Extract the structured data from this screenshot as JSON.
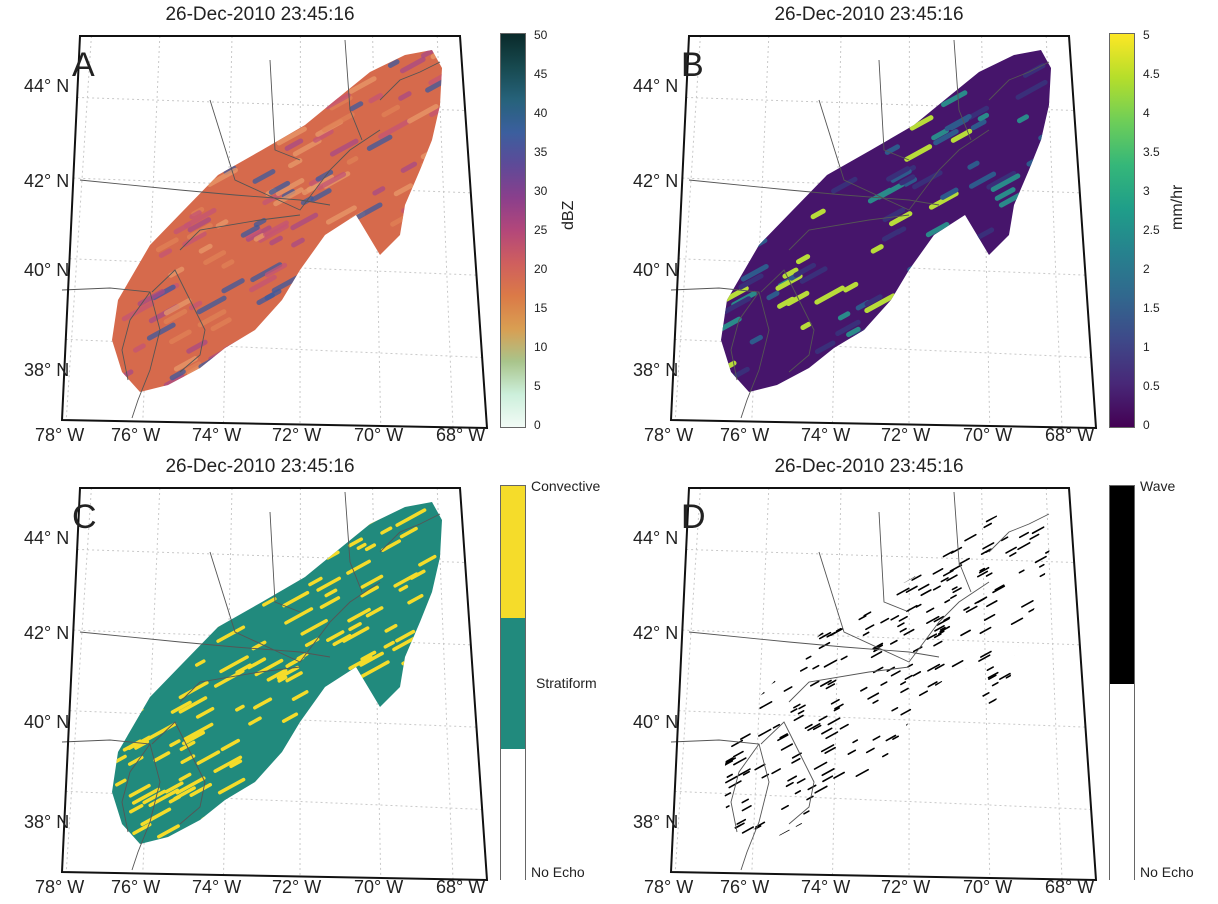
{
  "panels": [
    {
      "id": "A",
      "title": "26-Dec-2010 23:45:16",
      "label": "A",
      "colorbar": {
        "type": "continuous",
        "label": "dBZ",
        "ticks": [
          "50",
          "45",
          "40",
          "35",
          "30",
          "25",
          "20",
          "15",
          "10",
          "5",
          "0"
        ],
        "gradient": [
          "#0a2a2a",
          "#17494f",
          "#26627a",
          "#3b5f9e",
          "#5e4a98",
          "#8a3f8c",
          "#b3477a",
          "#cf5f5e",
          "#db7a47",
          "#d99e52",
          "#a9c48b",
          "#ccefdb",
          "#f2fbf6"
        ]
      },
      "field_colors": [
        "#d66a4c",
        "#c45575",
        "#a84a86",
        "#e08256",
        "#e89a6a",
        "#3c5a9e"
      ]
    },
    {
      "id": "B",
      "title": "26-Dec-2010 23:45:16",
      "label": "B",
      "colorbar": {
        "type": "continuous",
        "label": "mm/hr",
        "ticks": [
          "5",
          "4.5",
          "4",
          "3.5",
          "3",
          "2.5",
          "2",
          "1.5",
          "1",
          "0.5",
          "0"
        ],
        "gradient": [
          "#fde725",
          "#b5de2b",
          "#6ece58",
          "#35b779",
          "#1f9e89",
          "#26828e",
          "#31688e",
          "#3e4989",
          "#482878",
          "#440154"
        ]
      },
      "field_colors": [
        "#46156b",
        "#3a2f7a",
        "#2e5a8c",
        "#2a8a8a",
        "#b8dc3a"
      ]
    },
    {
      "id": "C",
      "title": "26-Dec-2010 23:45:16",
      "label": "C",
      "colorbar": {
        "type": "categorical",
        "categories": [
          {
            "name": "Convective",
            "color": "#f5dc2a"
          },
          {
            "name": "Stratiform",
            "color": "#218a7d"
          },
          {
            "name": "No Echo",
            "color": "#ffffff"
          }
        ]
      },
      "field_colors": [
        "#218a7d",
        "#f5dc2a"
      ]
    },
    {
      "id": "D",
      "title": "26-Dec-2010 23:45:16",
      "label": "D",
      "colorbar": {
        "type": "categorical",
        "categories": [
          {
            "name": "Wave",
            "color": "#000000"
          },
          {
            "name": "No Echo",
            "color": "#ffffff"
          }
        ]
      },
      "field_colors": [
        "#000000"
      ]
    }
  ],
  "lat_ticks": [
    {
      "deg": "44",
      "hemi": "N"
    },
    {
      "deg": "42",
      "hemi": "N"
    },
    {
      "deg": "40",
      "hemi": "N"
    },
    {
      "deg": "38",
      "hemi": "N"
    }
  ],
  "lon_ticks": [
    {
      "deg": "78",
      "hemi": "W"
    },
    {
      "deg": "76",
      "hemi": "W"
    },
    {
      "deg": "74",
      "hemi": "W"
    },
    {
      "deg": "72",
      "hemi": "W"
    },
    {
      "deg": "70",
      "hemi": "W"
    },
    {
      "deg": "68",
      "hemi": "W"
    }
  ],
  "degree_symbol": "°"
}
